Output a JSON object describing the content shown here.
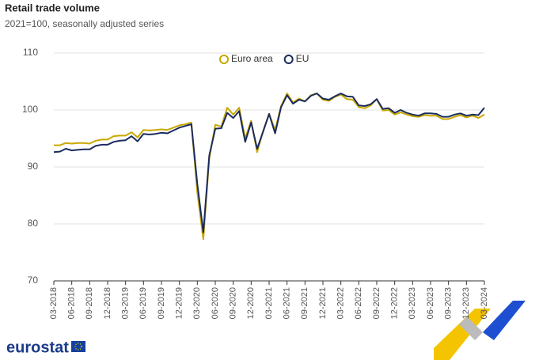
{
  "chart_data": {
    "type": "line",
    "title": "Retail trade volume",
    "subtitle": "2021=100, seasonally adjusted series",
    "logo": "eurostat",
    "categories": [
      "03-2018",
      null,
      null,
      "06-2018",
      null,
      null,
      "09-2018",
      null,
      null,
      "12-2018",
      null,
      null,
      "03-2019",
      null,
      null,
      "06-2019",
      null,
      null,
      "09-2019",
      null,
      null,
      "12-2019",
      null,
      null,
      "03-2020",
      null,
      null,
      "06-2020",
      null,
      null,
      "09-2020",
      null,
      null,
      "12-2020",
      null,
      null,
      "03-2021",
      null,
      null,
      "06-2021",
      null,
      null,
      "09-2021",
      null,
      null,
      "12-2021",
      null,
      null,
      "03-2022",
      null,
      null,
      "06-2022",
      null,
      null,
      "09-2022",
      null,
      null,
      "12-2022",
      null,
      null,
      "03-2023",
      null,
      null,
      "06-2023",
      null,
      null,
      "09-2023",
      null,
      null,
      "12-2023",
      null,
      null,
      "03-2024"
    ],
    "series": [
      {
        "name": "Euro area",
        "color": "#c9a800",
        "values": [
          93.8,
          93.8,
          94.2,
          94.1,
          94.2,
          94.2,
          94.1,
          94.6,
          94.8,
          94.8,
          95.4,
          95.5,
          95.5,
          96.1,
          95.2,
          96.5,
          96.4,
          96.5,
          96.6,
          96.5,
          96.9,
          97.3,
          97.5,
          97.8,
          85.5,
          77.3,
          91.5,
          97.4,
          97.1,
          100.4,
          99.2,
          100.4,
          95.0,
          98.1,
          92.6,
          96.3,
          99.3,
          96.5,
          100.7,
          102.9,
          101.3,
          102.0,
          101.5,
          102.6,
          102.9,
          101.8,
          101.6,
          102.3,
          102.7,
          101.9,
          101.8,
          100.5,
          100.3,
          100.8,
          101.9,
          99.9,
          100.0,
          99.2,
          99.6,
          99.2,
          98.9,
          98.8,
          99.1,
          99.0,
          99.0,
          98.4,
          98.4,
          98.8,
          99.1,
          98.7,
          99.0,
          98.6,
          99.2
        ]
      },
      {
        "name": "EU",
        "color": "#1a2b5e",
        "values": [
          92.6,
          92.7,
          93.2,
          92.9,
          93.0,
          93.1,
          93.1,
          93.7,
          93.9,
          93.9,
          94.4,
          94.6,
          94.7,
          95.4,
          94.5,
          95.8,
          95.7,
          95.8,
          96.0,
          95.9,
          96.4,
          96.9,
          97.2,
          97.5,
          87.0,
          78.5,
          92.0,
          96.7,
          96.8,
          99.5,
          98.6,
          99.8,
          94.4,
          97.8,
          93.2,
          96.2,
          99.3,
          95.9,
          100.5,
          102.6,
          101.1,
          101.8,
          101.5,
          102.5,
          102.9,
          102.0,
          101.8,
          102.4,
          102.9,
          102.4,
          102.3,
          100.8,
          100.7,
          101.0,
          101.9,
          100.2,
          100.3,
          99.5,
          100.0,
          99.5,
          99.2,
          99.0,
          99.4,
          99.4,
          99.3,
          98.8,
          98.8,
          99.2,
          99.4,
          99.0,
          99.2,
          99.1,
          100.4
        ]
      }
    ],
    "ylim": [
      70,
      110
    ],
    "yticks": [
      70,
      80,
      90,
      100,
      110
    ],
    "grid": true,
    "legend": "top"
  }
}
